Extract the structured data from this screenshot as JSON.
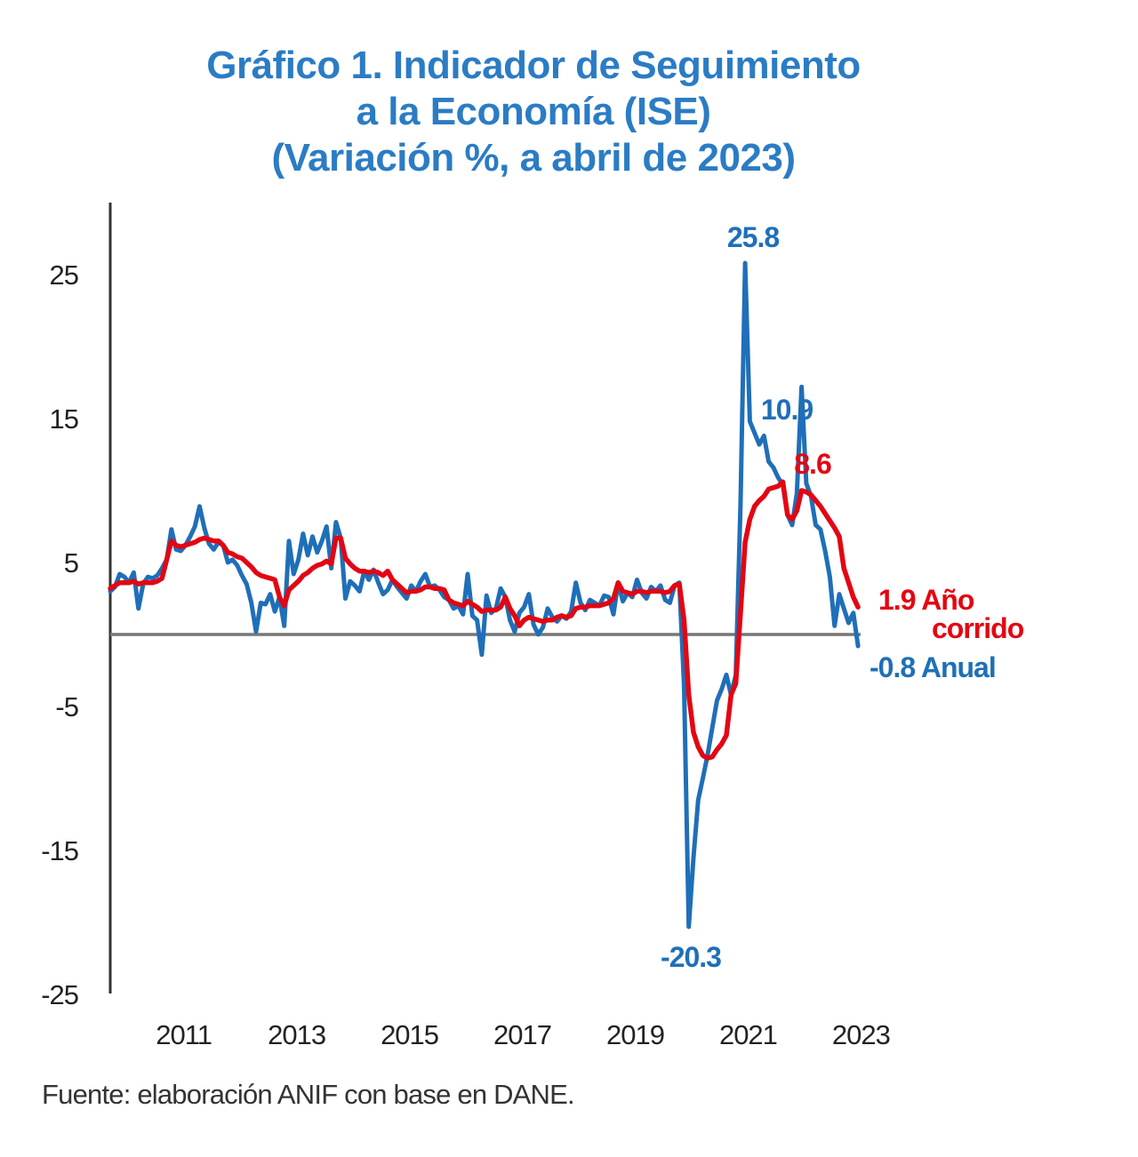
{
  "chart_data": {
    "type": "line",
    "title": "Gráfico 1. Indicador de Seguimiento a la Economía (ISE) (Variación %, a abril de 2023)",
    "title_lines": [
      "Gráfico 1. Indicador de Seguimiento",
      "a la Economía (ISE)",
      "(Variación %, a abril de 2023)"
    ],
    "source": "Fuente: elaboración ANIF con base en DANE.",
    "x_start": "2010-01",
    "x_frequency": "monthly",
    "x_end": "2023-04",
    "xticks": [
      "2011",
      "2013",
      "2015",
      "2017",
      "2019",
      "2021",
      "2023"
    ],
    "yticks": [
      "25",
      "15",
      "5",
      "-5",
      "-15",
      "-25"
    ],
    "ylim": [
      -25,
      30
    ],
    "grid": false,
    "zero_line": true,
    "colors": {
      "anual": "#1f6fb8",
      "ano_corrido": "#e30613",
      "title": "#2b7cc4"
    },
    "series": [
      {
        "key": "anual",
        "values": [
          3.0,
          3.3,
          4.2,
          4.0,
          3.6,
          4.3,
          1.8,
          3.5,
          4.0,
          3.9,
          4.1,
          4.6,
          5.2,
          7.3,
          5.9,
          5.8,
          6.2,
          6.8,
          7.5,
          8.9,
          7.4,
          6.3,
          5.9,
          6.4,
          6.2,
          5.0,
          5.2,
          4.8,
          4.1,
          3.5,
          2.2,
          0.2,
          2.2,
          2.1,
          2.8,
          1.6,
          2.6,
          0.6,
          6.5,
          4.2,
          5.2,
          7.0,
          5.5,
          6.8,
          5.7,
          6.5,
          7.5,
          4.6,
          7.8,
          6.7,
          2.5,
          3.7,
          3.4,
          3.0,
          4.4,
          3.8,
          4.5,
          3.6,
          2.8,
          3.1,
          3.8,
          3.3,
          2.9,
          2.5,
          3.4,
          3.0,
          3.7,
          4.2,
          3.3,
          3.4,
          3.1,
          2.6,
          2.4,
          1.8,
          2.0,
          1.4,
          4.2,
          1.3,
          1.0,
          -1.4,
          2.7,
          1.5,
          1.8,
          3.2,
          2.6,
          1.0,
          0.2,
          1.5,
          1.9,
          2.8,
          0.7,
          0.0,
          0.5,
          1.8,
          1.2,
          0.9,
          1.3,
          1.1,
          1.6,
          3.6,
          2.2,
          1.7,
          2.4,
          2.2,
          2.0,
          2.7,
          2.6,
          1.4,
          3.6,
          2.3,
          2.9,
          2.6,
          3.8,
          2.9,
          2.5,
          3.3,
          3.0,
          3.4,
          2.4,
          2.2,
          3.4,
          3.6,
          -3.5,
          -20.3,
          -15.5,
          -11.5,
          -10.0,
          -8.4,
          -6.5,
          -4.6,
          -3.8,
          -2.8,
          -4.2,
          -2.8,
          9.0,
          25.8,
          14.8,
          14.0,
          13.2,
          13.8,
          12.0,
          11.6,
          10.9,
          10.4,
          8.3,
          7.6,
          9.8,
          17.2,
          10.5,
          9.6,
          7.6,
          7.3,
          5.8,
          4.0,
          0.6,
          2.8,
          1.8,
          0.8,
          1.5,
          -0.8
        ]
      },
      {
        "key": "ano_corrido",
        "values": [
          3.2,
          3.4,
          3.6,
          3.6,
          3.6,
          3.7,
          3.5,
          3.6,
          3.6,
          3.6,
          3.7,
          3.9,
          5.2,
          6.5,
          6.2,
          6.1,
          6.2,
          6.3,
          6.4,
          6.6,
          6.7,
          6.6,
          6.5,
          6.5,
          6.2,
          5.7,
          5.6,
          5.4,
          5.3,
          5.0,
          4.7,
          4.3,
          4.1,
          4.0,
          3.9,
          3.8,
          2.6,
          2.0,
          3.1,
          3.4,
          3.7,
          4.1,
          4.3,
          4.6,
          4.8,
          4.9,
          5.1,
          4.9,
          6.7,
          6.7,
          5.3,
          4.9,
          4.6,
          4.4,
          4.4,
          4.3,
          4.4,
          4.3,
          4.1,
          4.4,
          3.8,
          3.5,
          3.2,
          2.9,
          3.0,
          3.0,
          3.1,
          3.3,
          3.3,
          3.2,
          3.2,
          3.1,
          2.4,
          2.2,
          2.1,
          2.0,
          2.3,
          2.1,
          1.9,
          1.6,
          1.7,
          1.7,
          1.7,
          1.9,
          2.6,
          1.8,
          1.3,
          0.6,
          1.0,
          1.2,
          1.1,
          1.0,
          0.9,
          1.0,
          1.0,
          1.2,
          1.3,
          1.2,
          1.3,
          1.8,
          1.9,
          1.9,
          2.0,
          2.0,
          2.0,
          2.1,
          2.2,
          2.5,
          3.6,
          3.0,
          2.9,
          2.8,
          3.0,
          3.0,
          2.9,
          3.0,
          3.0,
          3.0,
          2.9,
          3.0,
          3.4,
          3.5,
          1.0,
          -4.2,
          -6.8,
          -7.8,
          -8.4,
          -8.6,
          -8.5,
          -8.0,
          -7.6,
          -7.0,
          -4.2,
          -3.4,
          1.5,
          6.4,
          8.0,
          8.9,
          9.3,
          9.6,
          10.1,
          10.2,
          10.3,
          10.6,
          8.3,
          8.0,
          8.6,
          10.0,
          9.9,
          9.7,
          9.3,
          8.9,
          8.4,
          7.9,
          7.4,
          6.8,
          4.6,
          3.6,
          2.6,
          1.9
        ]
      }
    ],
    "annotations": [
      {
        "text": "25.8",
        "series": "anual"
      },
      {
        "text": "10.9",
        "series": "anual"
      },
      {
        "text": "8.6",
        "series": "ano_corrido"
      },
      {
        "text": "-20.3",
        "series": "anual"
      },
      {
        "text": "1.9 Año",
        "series": "ano_corrido"
      },
      {
        "text": "corrido",
        "series": "ano_corrido"
      },
      {
        "text": "-0.8 Anual",
        "series": "anual"
      }
    ]
  }
}
